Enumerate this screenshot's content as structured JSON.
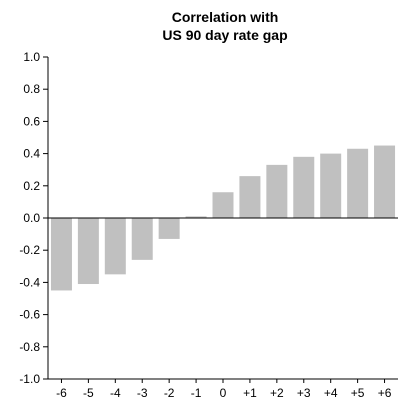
{
  "chart_data": {
    "type": "bar",
    "title_lines": [
      "Correlation with",
      "US 90 day rate gap"
    ],
    "categories": [
      "-6",
      "-5",
      "-4",
      "-3",
      "-2",
      "-1",
      "0",
      "+1",
      "+2",
      "+3",
      "+4",
      "+5",
      "+6"
    ],
    "values": [
      -0.45,
      -0.41,
      -0.35,
      -0.26,
      -0.13,
      0.01,
      0.16,
      0.26,
      0.33,
      0.38,
      0.4,
      0.43,
      0.45
    ],
    "ylim": [
      -1.0,
      1.0
    ],
    "yticks": [
      "1.0",
      "0.8",
      "0.6",
      "0.4",
      "0.2",
      "0.0",
      "-0.2",
      "-0.4",
      "-0.6",
      "-0.8",
      "-1.0"
    ],
    "grid": false,
    "legend": "none",
    "bar_color": "#c0c0c0"
  }
}
